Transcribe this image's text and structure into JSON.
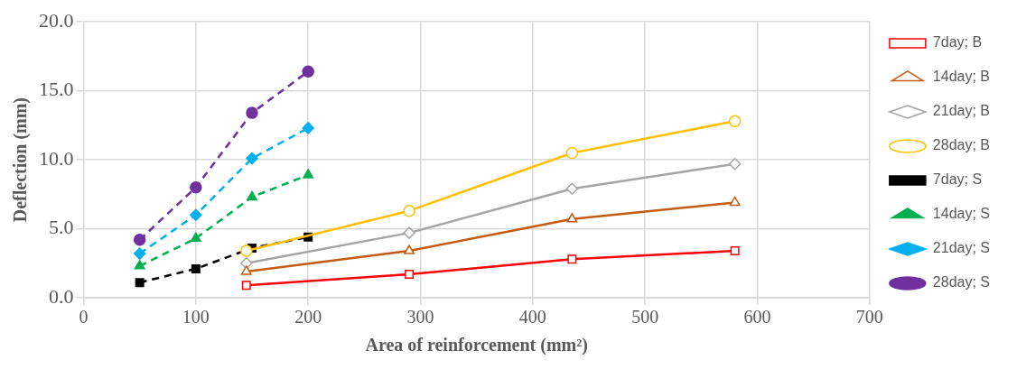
{
  "chart_data": {
    "type": "line",
    "xlabel": "Area of reinforcement (mm²)",
    "ylabel": "Deflection (mm)",
    "xlim": [
      0,
      700
    ],
    "xticks": [
      0,
      100,
      200,
      300,
      400,
      500,
      600,
      700
    ],
    "ylim": [
      0,
      20
    ],
    "yticks": [
      {
        "value": 0,
        "label": "0.0"
      },
      {
        "value": 5,
        "label": "5.0"
      },
      {
        "value": 10,
        "label": "10.0"
      },
      {
        "value": 15,
        "label": "15.0"
      },
      {
        "value": 20,
        "label": "20.0"
      }
    ],
    "grid": true,
    "legend": "right",
    "series": [
      {
        "name": "7day; B",
        "color": "#ff0000",
        "marker": "square",
        "line_style": "solid",
        "x": [
          145,
          290,
          435,
          580
        ],
        "values": [
          0.9,
          1.7,
          2.8,
          3.4
        ]
      },
      {
        "name": "14day; B",
        "color": "#c55a11",
        "marker": "triangle",
        "line_style": "solid",
        "x": [
          145,
          290,
          435,
          580
        ],
        "values": [
          1.9,
          3.4,
          5.7,
          6.9
        ]
      },
      {
        "name": "21day; B",
        "color": "#a5a5a5",
        "marker": "diamond",
        "line_style": "solid",
        "x": [
          145,
          290,
          435,
          580
        ],
        "values": [
          2.5,
          4.7,
          7.9,
          9.7
        ]
      },
      {
        "name": "28day; B",
        "color": "#ffc000",
        "marker": "circle",
        "line_style": "solid",
        "x": [
          145,
          290,
          435,
          580
        ],
        "values": [
          3.4,
          6.3,
          10.5,
          12.8
        ]
      },
      {
        "name": "7day; S",
        "color": "#000000",
        "marker": "square",
        "line_style": "dashed",
        "x": [
          50,
          100,
          150,
          200
        ],
        "values": [
          1.1,
          2.1,
          3.6,
          4.4
        ]
      },
      {
        "name": "14day; S",
        "color": "#00b050",
        "marker": "triangle",
        "line_style": "dashed",
        "x": [
          50,
          100,
          150,
          200
        ],
        "values": [
          2.3,
          4.3,
          7.3,
          8.9
        ]
      },
      {
        "name": "21day; S",
        "color": "#00b0f0",
        "marker": "diamond",
        "line_style": "dashed",
        "x": [
          50,
          100,
          150,
          200
        ],
        "values": [
          3.2,
          6.0,
          10.1,
          12.3
        ]
      },
      {
        "name": "28day; S",
        "color": "#7030a0",
        "marker": "circle",
        "line_style": "dashed",
        "x": [
          50,
          100,
          150,
          200
        ],
        "values": [
          4.2,
          8.0,
          13.4,
          16.4
        ]
      }
    ]
  }
}
